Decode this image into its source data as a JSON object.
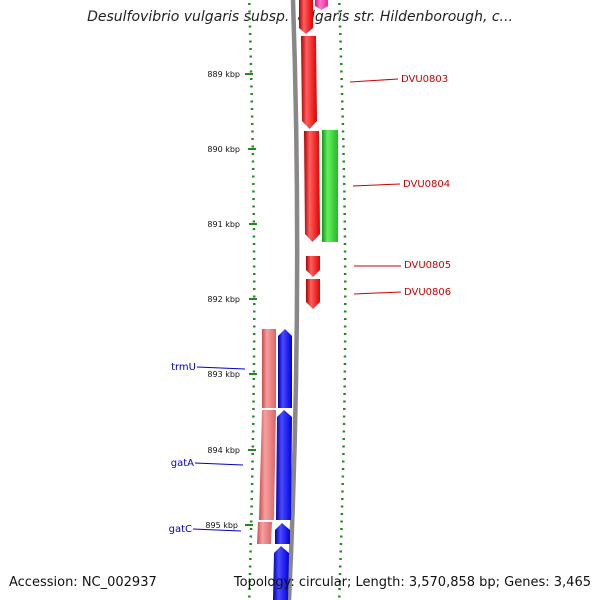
{
  "title": "Desulfovibrio vulgaris subsp. vulgaris str. Hildenborough, c...",
  "footer": {
    "accession": "Accession: NC_002937",
    "stats": "Topology: circular; Length: 3,570,858 bp; Genes: 3,465"
  },
  "colors": {
    "forward_gene": "#ee1111",
    "forward_gene_pink": "#ff33aa",
    "forward_other": "#22bb22",
    "reverse_gene": "#1111ee",
    "reverse_other": "#e06a6a",
    "forward_label": "#cc0000",
    "reverse_label": "#0000cc",
    "tick": "#228822",
    "backbone": "#888888"
  },
  "ruler": {
    "ticks": [
      {
        "label": "889 kbp"
      },
      {
        "label": "890 kbp"
      },
      {
        "label": "891 kbp"
      },
      {
        "label": "892 kbp"
      },
      {
        "label": "893 kbp"
      },
      {
        "label": "894 kbp"
      },
      {
        "label": "895 kbp"
      }
    ]
  },
  "genes": {
    "forward": [
      {
        "label": "DVU0803"
      },
      {
        "label": "DVU0804"
      },
      {
        "label": "DVU0805"
      },
      {
        "label": "DVU0806"
      }
    ],
    "reverse": [
      {
        "label": "trmU"
      },
      {
        "label": "gatA"
      },
      {
        "label": "gatC"
      }
    ]
  }
}
